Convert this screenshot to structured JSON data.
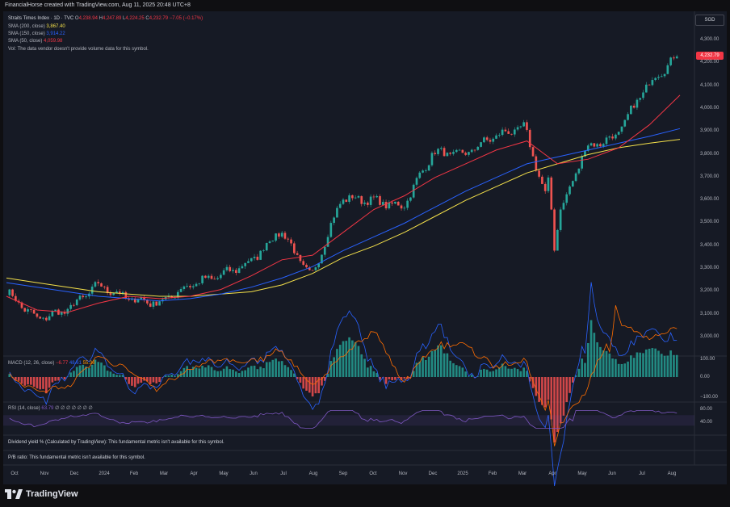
{
  "header": {
    "title": "FinancialHorse created with TradingView.com, Aug 11, 2025 20:48 UTC+8"
  },
  "main_legend": {
    "symbol": "Straits Times Index · 1D · TVC",
    "ohlc": [
      {
        "k": "O",
        "v": "4,238.94"
      },
      {
        "k": "H",
        "v": "4,247.89"
      },
      {
        "k": "L",
        "v": "4,224.25"
      },
      {
        "k": "C",
        "v": "4,232.79"
      }
    ],
    "change": "−7.05 (−0.17%)",
    "sma200": {
      "label": "SMA (200, close)",
      "value": "3,867.40"
    },
    "sma150": {
      "label": "SMA (150, close)",
      "value": "3,914.22"
    },
    "sma50": {
      "label": "SMA (50, close)",
      "value": "4,059.98"
    },
    "vol": "Vol: The data vendor doesn't provide volume data for this symbol."
  },
  "currency": "SGD",
  "last_price": "4,232.79",
  "price_axis": [
    "4,300.00",
    "4,200.00",
    "4,100.00",
    "4,000.00",
    "3,900.00",
    "3,800.00",
    "3,700.00",
    "3,600.00",
    "3,500.00",
    "3,400.00",
    "3,300.00",
    "3,200.00",
    "3,100.00",
    "3,000.00"
  ],
  "macd_legend": {
    "label": "MACD (12, 26, close)",
    "v1": "−6.77",
    "v2": "48.61",
    "v3": "55.38"
  },
  "macd_axis": [
    "100.00",
    "0.00",
    "−100.00"
  ],
  "rsi_legend": {
    "label": "RSI (14, close)",
    "v1": "63.79",
    "rest": "∅ ∅ ∅ ∅ ∅ ∅ ∅"
  },
  "rsi_axis": [
    "80.00",
    "40.00"
  ],
  "notes": {
    "dividend": "Dividend yield % (Calculated by TradingView): This fundamental metric isn't available for this symbol.",
    "pb": "P/B ratio: This fundamental metric isn't available for this symbol."
  },
  "time_axis": [
    "Oct",
    "Nov",
    "Dec",
    "2024",
    "Feb",
    "Mar",
    "Apr",
    "May",
    "Jun",
    "Jul",
    "Aug",
    "Sep",
    "Oct",
    "Nov",
    "Dec",
    "2025",
    "Feb",
    "Mar",
    "Apr",
    "May",
    "Jun",
    "Jul",
    "Aug"
  ],
  "brand": "TradingView",
  "colors": {
    "up": "#26a69a",
    "down": "#ef5350",
    "sma200": "#f5e14a",
    "sma150": "#2962ff",
    "sma50": "#f23645",
    "rsi": "#7e57c2"
  },
  "chart_data": {
    "type": "line",
    "series": [
      {
        "name": "Straits Times Index",
        "x": [
          "Oct",
          "Nov",
          "Dec",
          "2024",
          "Feb",
          "Mar",
          "Apr",
          "May",
          "Jun",
          "Jul",
          "Aug",
          "Sep",
          "Oct",
          "Nov",
          "Dec",
          "2025",
          "Feb",
          "Mar",
          "Apr",
          "May",
          "Jun",
          "Jul",
          "Aug"
        ],
        "values": [
          3200,
          3080,
          3120,
          3230,
          3170,
          3150,
          3230,
          3270,
          3330,
          3470,
          3260,
          3610,
          3600,
          3570,
          3810,
          3800,
          3880,
          3920,
          3480,
          3830,
          3880,
          4100,
          4232
        ]
      },
      {
        "name": "SMA (200, close)",
        "values": [
          3260,
          3240,
          3220,
          3200,
          3190,
          3180,
          3180,
          3190,
          3200,
          3230,
          3280,
          3350,
          3400,
          3460,
          3530,
          3600,
          3660,
          3720,
          3760,
          3800,
          3830,
          3850,
          3867
        ]
      },
      {
        "name": "SMA (150, close)",
        "values": [
          3240,
          3220,
          3200,
          3180,
          3170,
          3160,
          3170,
          3190,
          3220,
          3260,
          3310,
          3380,
          3440,
          3500,
          3570,
          3640,
          3700,
          3760,
          3790,
          3820,
          3850,
          3880,
          3914
        ]
      },
      {
        "name": "SMA (50, close)",
        "values": [
          3180,
          3120,
          3110,
          3150,
          3180,
          3170,
          3180,
          3210,
          3270,
          3340,
          3360,
          3460,
          3560,
          3620,
          3700,
          3760,
          3820,
          3860,
          3760,
          3780,
          3830,
          3930,
          4060
        ]
      }
    ],
    "ylim": [
      2950,
      4340
    ]
  }
}
